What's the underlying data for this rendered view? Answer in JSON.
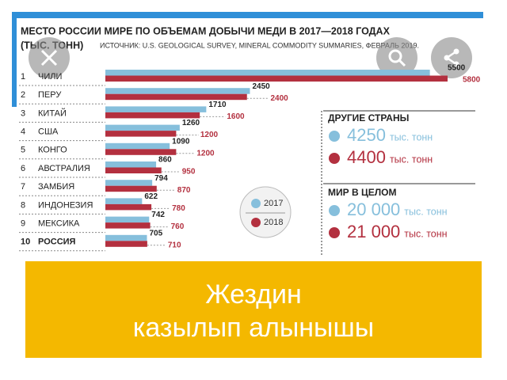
{
  "chart_data": {
    "type": "hbar",
    "title": "МЕСТО РОССИИ МИРЕ ПО ОБЪЕМАМ ДОБЫЧИ МЕДИ В 2017—2018 ГОДАХ",
    "subtitle": "(ТЫС. ТОНН)",
    "source": "ИСТОЧНИК: U.S. GEOLOGICAL SURVEY, MINERAL COMMODITY SUMMARIES, ФЕВРАЛЬ 2019.",
    "ranks": [
      "1",
      "2",
      "3",
      "4",
      "5",
      "6",
      "7",
      "8",
      "9",
      "10"
    ],
    "categories": [
      "ЧИЛИ",
      "ПЕРУ",
      "КИТАЙ",
      "США",
      "КОНГО",
      "АВСТРАЛИЯ",
      "ЗАМБИЯ",
      "ИНДОНЕЗИЯ",
      "МЕКСИКА",
      "РОССИЯ"
    ],
    "series": [
      {
        "name": "2017",
        "color": "#86bfdc",
        "values": [
          5500,
          2450,
          1710,
          1260,
          1090,
          860,
          794,
          622,
          742,
          705
        ]
      },
      {
        "name": "2018",
        "color": "#b3303f",
        "values": [
          5800,
          2400,
          1600,
          1200,
          1200,
          950,
          870,
          780,
          760,
          710
        ]
      }
    ]
  },
  "panels": [
    {
      "title": "ДРУГИЕ СТРАНЫ",
      "rows": [
        {
          "value": "4250",
          "unit": "тыс. тонн"
        },
        {
          "value": "4400",
          "unit": "тыс. тонн"
        }
      ]
    },
    {
      "title": "МИР В ЦЕЛОМ",
      "rows": [
        {
          "value": "20 000",
          "unit": "тыс. тонн"
        },
        {
          "value": "21 000",
          "unit": "тыс. тонн"
        }
      ]
    }
  ],
  "caption": "Жездин казылып алынышы"
}
